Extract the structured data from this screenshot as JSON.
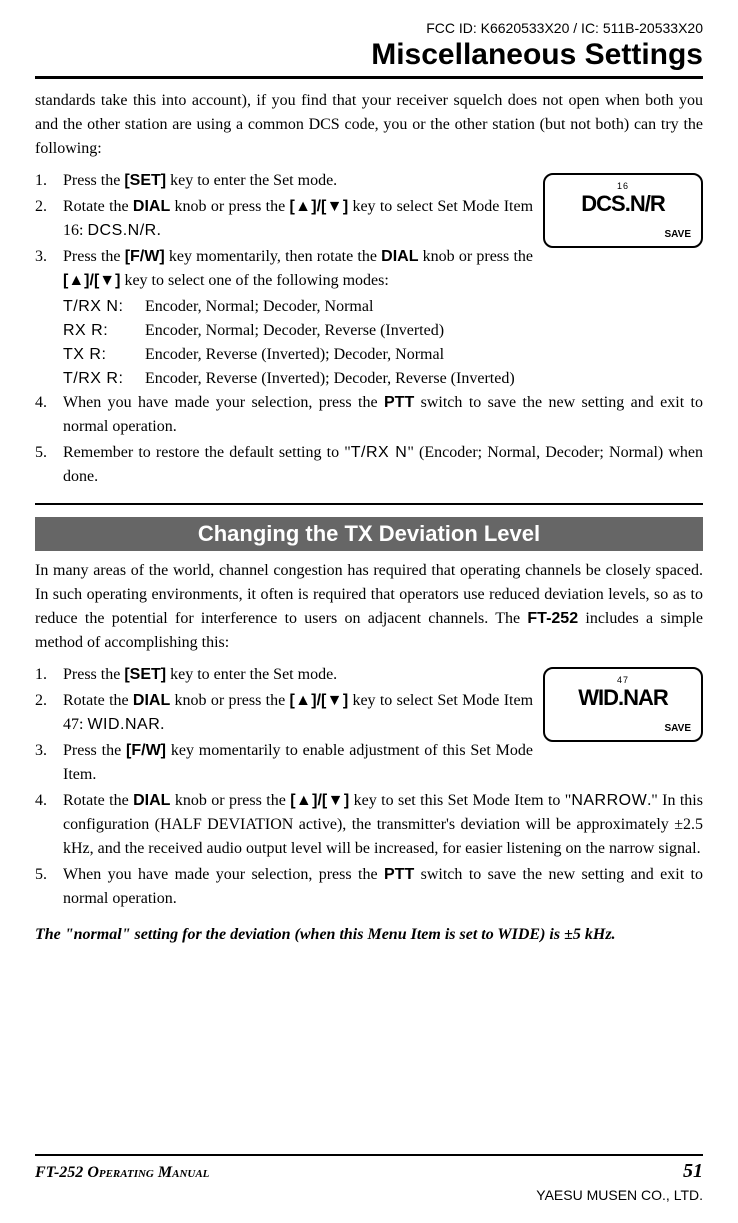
{
  "header": {
    "fcc_id": "FCC ID: K6620533X20 / IC: 511B-20533X20",
    "main_title": "Miscellaneous Settings"
  },
  "intro": "standards take this into account), if you find that your receiver squelch does not open when both you and the other station are using a common DCS code, you or the other station (but not both) can try the following:",
  "list1": {
    "item1_a": "Press the ",
    "item1_b": "[SET]",
    "item1_c": " key to enter the Set mode.",
    "item2_a": "Rotate the ",
    "item2_b": "DIAL",
    "item2_c": " knob or press the ",
    "item2_d": "[▲]/[▼]",
    "item2_e": " key to select Set Mode Item 16: ",
    "item2_f": "DCS.N/R",
    "item2_g": ".",
    "item3_a": "Press the ",
    "item3_b": "[F/W]",
    "item3_c": " key momentarily, then rotate the ",
    "item3_d": "DIAL",
    "item3_e": " knob or press the ",
    "item3_f": "[▲]/[▼]",
    "item3_g": " key to select one of the following modes:",
    "item4_a": "When you have made your selection, press the ",
    "item4_b": "PTT",
    "item4_c": " switch to save the new setting and exit to normal operation.",
    "item5_a": "Remember to restore the default setting to \"",
    "item5_b": "T/RX N",
    "item5_c": "\" (Encoder; Normal, Decoder; Normal) when done."
  },
  "modes": [
    {
      "label": "T/RX N:",
      "desc": "Encoder, Normal; Decoder, Normal"
    },
    {
      "label": "RX R:",
      "desc": "Encoder, Normal; Decoder, Reverse (Inverted)"
    },
    {
      "label": "TX R:",
      "desc": "Encoder, Reverse (Inverted); Decoder, Normal"
    },
    {
      "label": "T/RX R:",
      "desc": "Encoder, Reverse (Inverted); Decoder, Reverse (Inverted)"
    }
  ],
  "lcd1": {
    "small": "16",
    "big": "DCS.N/R",
    "save": "SAVE"
  },
  "section2": {
    "title": "Changing the TX Deviation Level",
    "intro_a": "In many areas of the world, channel congestion has required that operating channels be closely spaced. In such operating environments, it often is required that operators use reduced deviation levels, so as to reduce the potential for interference to users on adjacent channels. The ",
    "intro_b": "FT-252",
    "intro_c": " includes a simple method of accomplishing this:"
  },
  "list2": {
    "item1_a": "Press the ",
    "item1_b": "[SET]",
    "item1_c": " key to enter the Set mode.",
    "item2_a": "Rotate the ",
    "item2_b": "DIAL",
    "item2_c": " knob or press the ",
    "item2_d": "[▲]/[▼]",
    "item2_e": " key to select Set Mode Item 47: ",
    "item2_f": "WID.NAR",
    "item2_g": ".",
    "item3_a": "Press the ",
    "item3_b": "[F/W]",
    "item3_c": " key momentarily to enable adjustment of this Set Mode Item.",
    "item4_a": "Rotate the ",
    "item4_b": "DIAL",
    "item4_c": " knob or press the ",
    "item4_d": "[▲]/[▼]",
    "item4_e": " key to set this Set Mode Item to \"",
    "item4_f": "NARROW",
    "item4_g": ".\" In this configuration (HALF DEVIATION active), the transmitter's deviation will be approximately ±2.5 kHz, and the received audio output level will be increased, for easier listening on the narrow signal.",
    "item5_a": "When you have made your selection, press the ",
    "item5_b": "PTT",
    "item5_c": " switch to save the new setting and exit to normal operation."
  },
  "lcd2": {
    "small": "47",
    "big": "WID.NAR",
    "save": "SAVE"
  },
  "note": "The \"normal\" setting for the deviation (when this Menu Item is set to WIDE) is ±5 kHz.",
  "footer": {
    "manual_model": "FT-252 ",
    "manual_text": "Operating Manual",
    "page": "51",
    "company": "YAESU MUSEN CO., LTD."
  },
  "colors": {
    "section_header_bg": "#666666",
    "section_header_fg": "#ffffff",
    "text": "#000000",
    "background": "#ffffff"
  }
}
